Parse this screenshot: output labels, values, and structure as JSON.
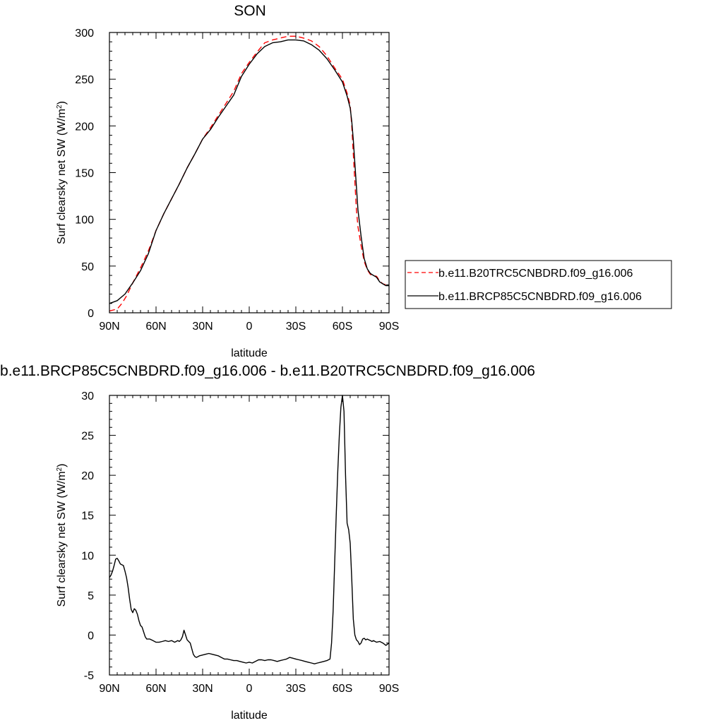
{
  "chart_data": [
    {
      "type": "line",
      "title": "SON",
      "xlabel": "latitude",
      "ylabel": "Surf clearsky net SW (W/m",
      "ylabel_sup": "2",
      "ylabel_close": ")",
      "xlim": [
        90,
        -90
      ],
      "ylim": [
        0,
        300
      ],
      "x_ticks": [
        {
          "value": 90,
          "label": "90N"
        },
        {
          "value": 60,
          "label": "60N"
        },
        {
          "value": 30,
          "label": "30N"
        },
        {
          "value": 0,
          "label": "0"
        },
        {
          "value": -30,
          "label": "30S"
        },
        {
          "value": -60,
          "label": "60S"
        },
        {
          "value": -90,
          "label": "90S"
        }
      ],
      "y_ticks": [
        0,
        50,
        100,
        150,
        200,
        250,
        300
      ],
      "legend_position": "right",
      "series": [
        {
          "name": "b.e11.B20TRC5CNBDRD.f09_g16.006",
          "color": "#ff0000",
          "dash": "dashed",
          "points": [
            [
              90,
              2
            ],
            [
              85,
              4
            ],
            [
              82,
              10
            ],
            [
              79,
              18
            ],
            [
              75,
              32
            ],
            [
              70,
              48
            ],
            [
              65,
              66
            ],
            [
              60,
              88
            ],
            [
              55,
              106
            ],
            [
              50,
              122
            ],
            [
              45,
              138
            ],
            [
              40,
              155
            ],
            [
              35,
              170
            ],
            [
              30,
              186
            ],
            [
              25,
              198
            ],
            [
              20,
              211
            ],
            [
              15,
              224
            ],
            [
              10,
              237
            ],
            [
              5,
              256
            ],
            [
              0,
              268
            ],
            [
              -5,
              279
            ],
            [
              -10,
              289
            ],
            [
              -15,
              292
            ],
            [
              -20,
              294
            ],
            [
              -25,
              296
            ],
            [
              -30,
              296
            ],
            [
              -35,
              294
            ],
            [
              -40,
              291
            ],
            [
              -45,
              285
            ],
            [
              -50,
              275
            ],
            [
              -55,
              262
            ],
            [
              -60,
              250
            ],
            [
              -63,
              235
            ],
            [
              -65,
              222
            ],
            [
              -66,
              200
            ],
            [
              -67,
              170
            ],
            [
              -68,
              140
            ],
            [
              -69,
              110
            ],
            [
              -70,
              92
            ],
            [
              -72,
              72
            ],
            [
              -74,
              55
            ],
            [
              -76,
              46
            ],
            [
              -78,
              41
            ],
            [
              -80,
              40
            ],
            [
              -82,
              39
            ],
            [
              -84,
              34
            ],
            [
              -86,
              31
            ],
            [
              -88,
              30
            ],
            [
              -90,
              30
            ]
          ]
        },
        {
          "name": "b.e11.BRCP85C5CNBDRD.f09_g16.006",
          "color": "#000000",
          "dash": "solid",
          "points": [
            [
              90,
              10
            ],
            [
              85,
              13
            ],
            [
              80,
              20
            ],
            [
              75,
              32
            ],
            [
              70,
              45
            ],
            [
              65,
              63
            ],
            [
              60,
              88
            ],
            [
              55,
              106
            ],
            [
              50,
              122
            ],
            [
              45,
              138
            ],
            [
              40,
              155
            ],
            [
              35,
              170
            ],
            [
              30,
              186
            ],
            [
              25,
              196
            ],
            [
              20,
              209
            ],
            [
              15,
              221
            ],
            [
              10,
              233
            ],
            [
              5,
              253
            ],
            [
              0,
              266
            ],
            [
              -5,
              277
            ],
            [
              -10,
              285
            ],
            [
              -15,
              289
            ],
            [
              -20,
              290
            ],
            [
              -25,
              292
            ],
            [
              -30,
              292
            ],
            [
              -35,
              291
            ],
            [
              -40,
              287
            ],
            [
              -45,
              281
            ],
            [
              -50,
              272
            ],
            [
              -55,
              260
            ],
            [
              -60,
              247
            ],
            [
              -63,
              232
            ],
            [
              -65,
              219
            ],
            [
              -66,
              205
            ],
            [
              -67,
              185
            ],
            [
              -68,
              160
            ],
            [
              -69,
              135
            ],
            [
              -70,
              110
            ],
            [
              -72,
              82
            ],
            [
              -74,
              58
            ],
            [
              -76,
              47
            ],
            [
              -78,
              42
            ],
            [
              -80,
              40
            ],
            [
              -82,
              38
            ],
            [
              -84,
              33
            ],
            [
              -86,
              31
            ],
            [
              -88,
              29
            ],
            [
              -90,
              29
            ]
          ]
        }
      ]
    },
    {
      "type": "line",
      "title": "b.e11.BRCP85C5CNBDRD.f09_g16.006 - b.e11.B20TRC5CNBDRD.f09_g16.006",
      "xlabel": "latitude",
      "ylabel": "Surf clearsky net SW (W/m",
      "ylabel_sup": "2",
      "ylabel_close": ")",
      "xlim": [
        90,
        -90
      ],
      "ylim": [
        -5,
        30
      ],
      "x_ticks": [
        {
          "value": 90,
          "label": "90N"
        },
        {
          "value": 60,
          "label": "60N"
        },
        {
          "value": 30,
          "label": "30N"
        },
        {
          "value": 0,
          "label": "0"
        },
        {
          "value": -30,
          "label": "30S"
        },
        {
          "value": -60,
          "label": "60S"
        },
        {
          "value": -90,
          "label": "90S"
        }
      ],
      "y_ticks": [
        -5,
        0,
        5,
        10,
        15,
        20,
        25,
        30
      ],
      "series": [
        {
          "color": "#000000",
          "dash": "solid",
          "points": [
            [
              90,
              7.2
            ],
            [
              89,
              7.5
            ],
            [
              88,
              8.0
            ],
            [
              87,
              8.7
            ],
            [
              86,
              9.5
            ],
            [
              85,
              9.6
            ],
            [
              84,
              9.3
            ],
            [
              83,
              8.9
            ],
            [
              82,
              8.8
            ],
            [
              81,
              8.7
            ],
            [
              80,
              8.0
            ],
            [
              79,
              7.2
            ],
            [
              78,
              6.0
            ],
            [
              77,
              4.5
            ],
            [
              76,
              3.2
            ],
            [
              75,
              2.8
            ],
            [
              74,
              3.3
            ],
            [
              73,
              3.1
            ],
            [
              72,
              2.6
            ],
            [
              71,
              1.8
            ],
            [
              70,
              1.2
            ],
            [
              69,
              1.0
            ],
            [
              68,
              0.4
            ],
            [
              67,
              -0.2
            ],
            [
              66,
              -0.5
            ],
            [
              64,
              -0.5
            ],
            [
              62,
              -0.7
            ],
            [
              60,
              -0.9
            ],
            [
              58,
              -0.9
            ],
            [
              56,
              -0.8
            ],
            [
              54,
              -0.7
            ],
            [
              52,
              -0.8
            ],
            [
              50,
              -0.7
            ],
            [
              48,
              -0.9
            ],
            [
              46,
              -0.7
            ],
            [
              45,
              -0.8
            ],
            [
              44,
              -0.6
            ],
            [
              43,
              -0.2
            ],
            [
              42,
              0.6
            ],
            [
              41,
              0.0
            ],
            [
              40,
              -0.6
            ],
            [
              39,
              -0.8
            ],
            [
              38,
              -1.0
            ],
            [
              37,
              -1.7
            ],
            [
              36,
              -2.4
            ],
            [
              35,
              -2.7
            ],
            [
              34,
              -2.8
            ],
            [
              33,
              -2.7
            ],
            [
              32,
              -2.6
            ],
            [
              30,
              -2.5
            ],
            [
              28,
              -2.4
            ],
            [
              26,
              -2.3
            ],
            [
              24,
              -2.4
            ],
            [
              22,
              -2.5
            ],
            [
              20,
              -2.6
            ],
            [
              18,
              -2.8
            ],
            [
              16,
              -3.0
            ],
            [
              14,
              -3.0
            ],
            [
              12,
              -3.1
            ],
            [
              10,
              -3.2
            ],
            [
              8,
              -3.2
            ],
            [
              6,
              -3.3
            ],
            [
              4,
              -3.4
            ],
            [
              2,
              -3.5
            ],
            [
              0,
              -3.4
            ],
            [
              -2,
              -3.5
            ],
            [
              -4,
              -3.3
            ],
            [
              -6,
              -3.1
            ],
            [
              -8,
              -3.1
            ],
            [
              -10,
              -3.2
            ],
            [
              -12,
              -3.1
            ],
            [
              -14,
              -3.1
            ],
            [
              -16,
              -3.2
            ],
            [
              -18,
              -3.3
            ],
            [
              -20,
              -3.2
            ],
            [
              -22,
              -3.1
            ],
            [
              -24,
              -3.0
            ],
            [
              -26,
              -2.8
            ],
            [
              -28,
              -2.9
            ],
            [
              -30,
              -3.0
            ],
            [
              -32,
              -3.1
            ],
            [
              -34,
              -3.2
            ],
            [
              -36,
              -3.3
            ],
            [
              -38,
              -3.4
            ],
            [
              -40,
              -3.5
            ],
            [
              -42,
              -3.6
            ],
            [
              -44,
              -3.5
            ],
            [
              -46,
              -3.4
            ],
            [
              -48,
              -3.3
            ],
            [
              -50,
              -3.2
            ],
            [
              -52,
              -3.0
            ],
            [
              -53,
              -1.0
            ],
            [
              -54,
              3.0
            ],
            [
              -55,
              9.0
            ],
            [
              -56,
              15.0
            ],
            [
              -57,
              20.5
            ],
            [
              -58,
              25.0
            ],
            [
              -59,
              28.5
            ],
            [
              -60,
              30.0
            ],
            [
              -61,
              28.0
            ],
            [
              -62,
              20.0
            ],
            [
              -63,
              14.0
            ],
            [
              -64,
              13.2
            ],
            [
              -65,
              11.5
            ],
            [
              -66,
              7.0
            ],
            [
              -67,
              2.0
            ],
            [
              -68,
              0.0
            ],
            [
              -69,
              -0.6
            ],
            [
              -70,
              -0.8
            ],
            [
              -71,
              -1.2
            ],
            [
              -72,
              -1.0
            ],
            [
              -73,
              -0.5
            ],
            [
              -74,
              -0.4
            ],
            [
              -75,
              -0.6
            ],
            [
              -76,
              -0.5
            ],
            [
              -77,
              -0.6
            ],
            [
              -78,
              -0.7
            ],
            [
              -79,
              -0.8
            ],
            [
              -80,
              -0.7
            ],
            [
              -81,
              -0.8
            ],
            [
              -82,
              -0.9
            ],
            [
              -84,
              -0.8
            ],
            [
              -86,
              -1.0
            ],
            [
              -88,
              -1.3
            ],
            [
              -90,
              -1.0
            ]
          ]
        }
      ]
    }
  ]
}
